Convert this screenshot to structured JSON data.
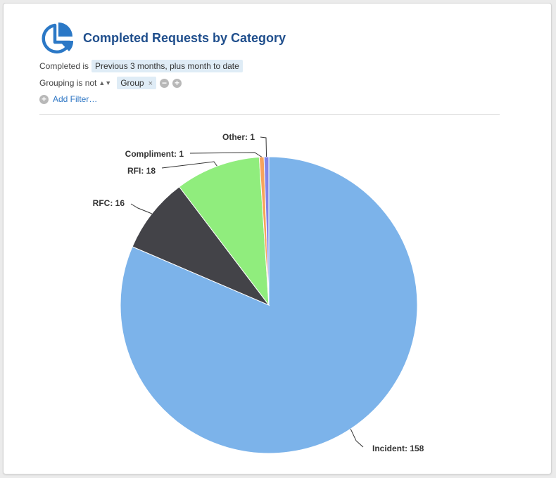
{
  "header": {
    "title": "Completed Requests by Category",
    "icon": "pie-chart-icon"
  },
  "filters": {
    "completed": {
      "label": "Completed is",
      "value": "Previous 3 months, plus month to date"
    },
    "grouping": {
      "label": "Grouping is not",
      "value": "Group",
      "remove_glyph": "×",
      "minus_glyph": "−",
      "plus_glyph": "+"
    },
    "add_filter": {
      "label": "Add Filter…",
      "glyph": "+"
    }
  },
  "colors": {
    "accent": "#1f4e8c",
    "link": "#2f77c5"
  },
  "chart_data": {
    "type": "pie",
    "title": "",
    "slices": [
      {
        "label": "Incident",
        "value": 158,
        "color": "#7cb3ea",
        "display": "Incident: 158"
      },
      {
        "label": "RFC",
        "value": 16,
        "color": "#434348",
        "display": "RFC: 16"
      },
      {
        "label": "RFI",
        "value": 18,
        "color": "#90ed7d",
        "display": "RFI: 18"
      },
      {
        "label": "Compliment",
        "value": 1,
        "color": "#f7a35c",
        "display": "Compliment: 1"
      },
      {
        "label": "Other",
        "value": 1,
        "color": "#8085e9",
        "display": "Other: 1"
      }
    ],
    "start": "12 o'clock",
    "direction": "clockwise"
  }
}
